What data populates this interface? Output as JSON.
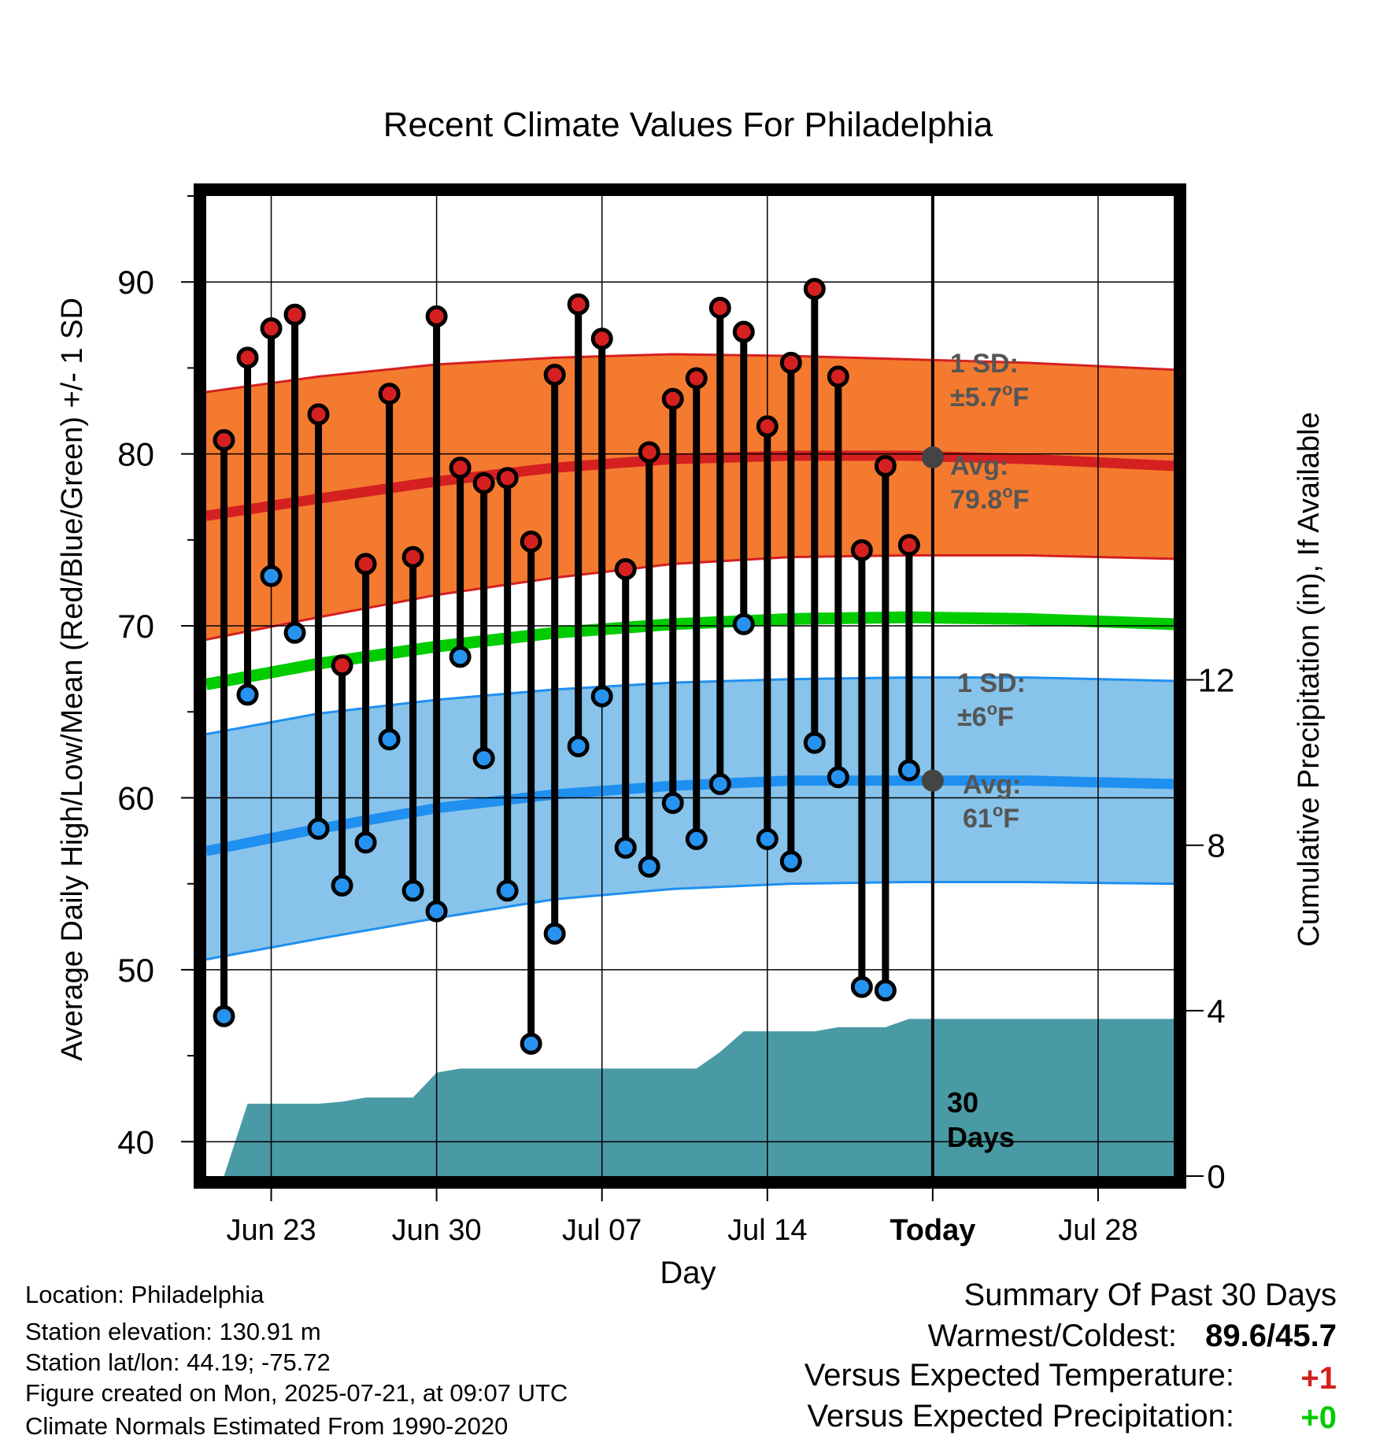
{
  "chart_data": {
    "type": "scatter",
    "title": "Recent Climate Values For Philadelphia",
    "xlabel": "Day",
    "ylabel": "Average Daily High/Low/Mean (Red/Blue/Green) +/- 1 SD",
    "y2label": "Cumulative Precipitation (in), If Available",
    "x_tick_labels": [
      "Jun 23",
      "Jun 30",
      "Jul 07",
      "Jul 14",
      "Today",
      "Jul 28"
    ],
    "x_tick_days": [
      2,
      9,
      16,
      23,
      30,
      37
    ],
    "y_ticks": [
      40,
      50,
      60,
      70,
      80,
      90
    ],
    "y2_ticks": [
      0,
      4,
      8,
      12
    ],
    "ylim": [
      38,
      95
    ],
    "y2lim": [
      0,
      23.7
    ],
    "xlim": [
      -0.75,
      40.2
    ],
    "grid": true,
    "today_label": "30\nDays",
    "observations": {
      "highs": [
        80.8,
        85.6,
        87.3,
        88.1,
        82.3,
        67.7,
        73.6,
        83.5,
        74.0,
        88.0,
        79.2,
        78.3,
        78.6,
        74.9,
        84.6,
        88.7,
        86.7,
        73.3,
        80.1,
        83.2,
        84.4,
        88.5,
        87.1,
        81.6,
        85.3,
        89.6,
        84.5,
        74.4,
        79.3,
        74.7
      ],
      "lows": [
        47.3,
        66.0,
        72.9,
        69.6,
        58.2,
        54.9,
        57.4,
        63.4,
        54.6,
        53.4,
        68.2,
        62.3,
        54.6,
        45.7,
        52.1,
        63.0,
        65.9,
        57.1,
        56.0,
        59.7,
        57.6,
        60.8,
        70.1,
        57.6,
        56.3,
        63.2,
        61.2,
        49.0,
        48.8,
        61.6
      ]
    },
    "normals": {
      "days": [
        -0.75,
        4,
        9,
        14,
        19,
        24,
        29,
        34,
        40.2
      ],
      "avg_high": [
        76.4,
        77.4,
        78.4,
        79.2,
        79.7,
        79.9,
        79.9,
        79.7,
        79.3
      ],
      "high_sd_upper": [
        83.6,
        84.5,
        85.2,
        85.6,
        85.8,
        85.7,
        85.5,
        85.3,
        84.9
      ],
      "high_sd_lower": [
        69.2,
        70.5,
        71.8,
        72.8,
        73.6,
        74.0,
        74.1,
        74.1,
        73.9
      ],
      "avg_mean": [
        66.6,
        67.8,
        68.8,
        69.6,
        70.1,
        70.4,
        70.5,
        70.4,
        70.1
      ],
      "avg_low": [
        56.9,
        58.2,
        59.4,
        60.2,
        60.7,
        61.0,
        61.0,
        61.0,
        60.8
      ],
      "low_sd_upper": [
        63.7,
        64.9,
        65.7,
        66.3,
        66.7,
        66.9,
        67.0,
        67.0,
        66.8
      ],
      "low_sd_lower": [
        50.6,
        51.8,
        53.0,
        54.1,
        54.7,
        55.0,
        55.1,
        55.1,
        55.0
      ]
    },
    "precip_cumulative": {
      "days": [
        0,
        1,
        2,
        3,
        4,
        5,
        6,
        7,
        8,
        9,
        10,
        11,
        12,
        13,
        14,
        15,
        16,
        17,
        18,
        19,
        20,
        21,
        22,
        23,
        24,
        25,
        26,
        27,
        28,
        29,
        40.2
      ],
      "values": [
        0,
        1.75,
        1.75,
        1.75,
        1.75,
        1.8,
        1.9,
        1.9,
        1.9,
        2.5,
        2.6,
        2.6,
        2.6,
        2.6,
        2.6,
        2.6,
        2.6,
        2.6,
        2.6,
        2.6,
        2.6,
        3.0,
        3.5,
        3.5,
        3.5,
        3.5,
        3.6,
        3.6,
        3.6,
        3.8,
        3.8
      ]
    },
    "annotations": {
      "high_sd_line1": "1 SD:",
      "high_sd_line2": "±5.7",
      "high_avg_line1": "Avg:",
      "high_avg_line2": "79.8",
      "low_sd_line1": "1 SD:",
      "low_sd_line2": "±6",
      "low_avg_line1": "Avg:",
      "low_avg_line2": "61",
      "degree_symbol": "o",
      "unit": "F",
      "high_avg_value": 79.8,
      "low_avg_value": 61
    },
    "colors": {
      "high_band": "#f47a30",
      "high_line": "#d42020",
      "mean_line": "#00cc00",
      "low_band": "#87c3ea",
      "low_line": "#1f8ff0",
      "precip": "#4a9aa5",
      "high_marker": "#d42020",
      "low_marker": "#2693f0",
      "annotation_text": "#555555",
      "avg_dot": "#444444"
    }
  },
  "footer": {
    "location": "Location: Philadelphia",
    "elevation": "Station elevation: 130.91 m",
    "latlon": "Station lat/lon: 44.19; -75.72",
    "created": "Figure created on Mon, 2025-07-21, at 09:07 UTC",
    "normals": "Climate Normals Estimated From 1990-2020"
  },
  "summary": {
    "title": "Summary Of Past 30 Days",
    "warmest_coldest_label": "Warmest/Coldest:",
    "warmest_coldest_value": "89.6/45.7",
    "vs_temp_label": "Versus Expected Temperature:",
    "vs_temp_value": "+1",
    "vs_precip_label": "Versus Expected Precipitation:",
    "vs_precip_value": "+0",
    "vs_temp_color": "#d42020",
    "vs_precip_color": "#00cc00"
  }
}
